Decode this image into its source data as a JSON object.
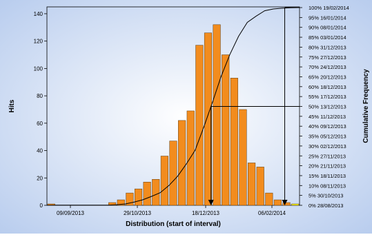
{
  "chart_data": {
    "type": "bar",
    "xlabel": "Distribution (start of interval)",
    "ylabel": "Hits",
    "y2label": "Cumulative Frequency",
    "ylim": [
      0,
      145
    ],
    "y_ticks": [
      0,
      20,
      40,
      60,
      80,
      100,
      120,
      140
    ],
    "x_tick_labels": [
      "09/09/2013",
      "29/10/2013",
      "18/12/2013",
      "06/02/2014"
    ],
    "bars": [
      1,
      0,
      0,
      0,
      0,
      0,
      0,
      2,
      4,
      9,
      12,
      17,
      19,
      36,
      47,
      62,
      69,
      117,
      126,
      132,
      110,
      93,
      70,
      31,
      28,
      9,
      4,
      2,
      1
    ],
    "bar_colors": [
      "#f28c1e",
      "#f28c1e",
      "#f28c1e",
      "#f28c1e",
      "#f28c1e",
      "#f28c1e",
      "#f28c1e",
      "#f28c1e",
      "#f28c1e",
      "#f28c1e",
      "#f28c1e",
      "#f28c1e",
      "#f28c1e",
      "#f28c1e",
      "#f28c1e",
      "#f28c1e",
      "#f28c1e",
      "#f28c1e",
      "#f28c1e",
      "#f28c1e",
      "#f28c1e",
      "#f28c1e",
      "#f28c1e",
      "#f28c1e",
      "#f28c1e",
      "#f28c1e",
      "#f28c1e",
      "#f28c1e",
      "#ffff00"
    ],
    "right_axis_labels": [
      "0% 28/08/2013",
      "5% 30/10/2013",
      "10% 08/11/2013",
      "15% 18/11/2013",
      "20% 21/11/2013",
      "25% 27/11/2013",
      "30% 02/12/2013",
      "35% 05/12/2013",
      "40% 09/12/2013",
      "45% 11/12/2013",
      "50% 13/12/2013",
      "55% 17/12/2013",
      "60% 18/12/2013",
      "65% 20/12/2013",
      "70% 24/12/2013",
      "75% 27/12/2013",
      "80% 31/12/2013",
      "85% 03/01/2014",
      "90% 08/01/2014",
      "95% 16/01/2014",
      "100% 19/02/2014"
    ],
    "cumulative_line_color": "#000000",
    "median_marker_pct": 50,
    "max_marker_pct": 100,
    "grid": false
  }
}
